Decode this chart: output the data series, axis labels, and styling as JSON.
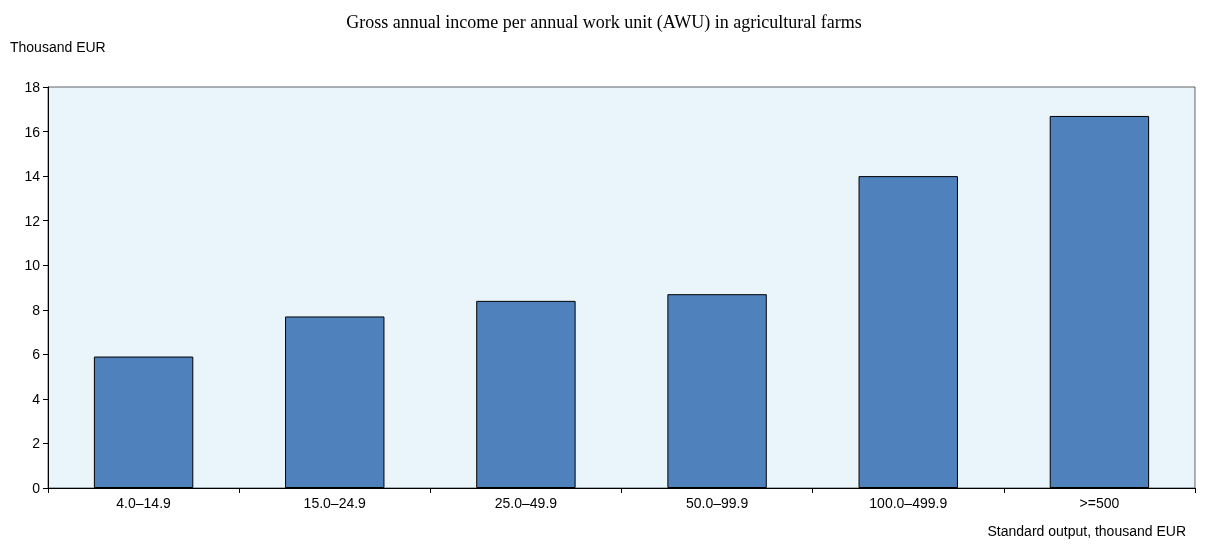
{
  "chart_data": {
    "type": "bar",
    "title": "Gross annual income per annual work unit (AWU) in agricultural farms",
    "ylabel": "Thousand EUR",
    "xlabel": "Standard output, thousand EUR",
    "categories": [
      "4.0–14.9",
      "15.0–24.9",
      "25.0–49.9",
      "50.0–99.9",
      "100.0–499.9",
      ">=500"
    ],
    "values": [
      5.9,
      7.7,
      8.4,
      8.7,
      14.0,
      16.7
    ],
    "color": "#4f81bd",
    "ylim": [
      0,
      18
    ],
    "yticks": [
      0,
      2,
      4,
      6,
      8,
      10,
      12,
      14,
      16,
      18
    ],
    "grid": false
  }
}
